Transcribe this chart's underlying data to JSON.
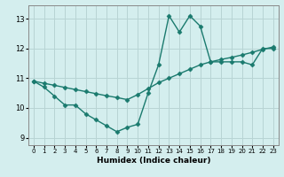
{
  "title": "",
  "xlabel": "Humidex (Indice chaleur)",
  "bg_color": "#d4eeee",
  "grid_color": "#b8d4d4",
  "line_color": "#1a7a6e",
  "x_curve": [
    0,
    1,
    2,
    3,
    4,
    5,
    6,
    7,
    8,
    9,
    10,
    11,
    12,
    13,
    14,
    15,
    16,
    17,
    18,
    19,
    20,
    21,
    22,
    23
  ],
  "y_curve": [
    10.9,
    10.7,
    10.4,
    10.1,
    10.1,
    9.8,
    9.6,
    9.4,
    9.2,
    9.35,
    9.45,
    10.5,
    11.45,
    13.1,
    12.55,
    13.1,
    12.75,
    11.55,
    11.55,
    11.55,
    11.55,
    11.45,
    12.0,
    12.0
  ],
  "x_line": [
    0,
    1,
    2,
    3,
    4,
    5,
    6,
    7,
    8,
    9,
    10,
    11,
    12,
    13,
    14,
    15,
    16,
    17,
    18,
    19,
    20,
    21,
    22,
    23
  ],
  "y_line": [
    10.9,
    10.83,
    10.76,
    10.69,
    10.62,
    10.55,
    10.48,
    10.41,
    10.35,
    10.28,
    10.45,
    10.65,
    10.85,
    11.0,
    11.15,
    11.3,
    11.45,
    11.55,
    11.63,
    11.7,
    11.78,
    11.87,
    11.97,
    12.05
  ],
  "ylim": [
    8.75,
    13.45
  ],
  "xlim": [
    -0.5,
    23.5
  ],
  "yticks": [
    9,
    10,
    11,
    12,
    13
  ],
  "xticks": [
    0,
    1,
    2,
    3,
    4,
    5,
    6,
    7,
    8,
    9,
    10,
    11,
    12,
    13,
    14,
    15,
    16,
    17,
    18,
    19,
    20,
    21,
    22,
    23
  ],
  "marker": "D",
  "markersize": 2.5,
  "linewidth": 1.0
}
